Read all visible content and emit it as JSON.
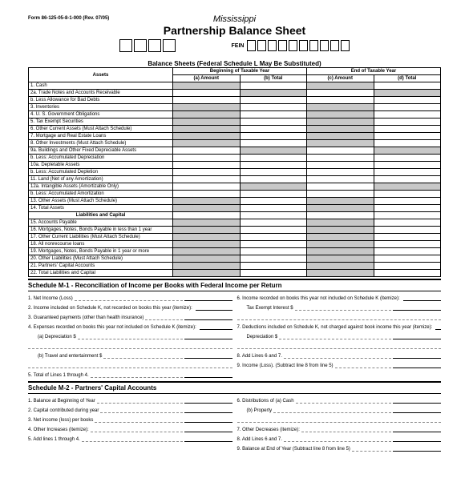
{
  "form_id": "Form 86-125-05-8-1-000 (Rev. 07/05)",
  "state": "Mississippi",
  "title": "Partnership Balance Sheet",
  "fein_label": "FEIN",
  "boxes": {
    "top_count": 4,
    "fein_count": 10
  },
  "balance": {
    "title": "Balance Sheets (Federal Schedule L May Be Substituted)",
    "group_headers": [
      "Beginning of Taxable Year",
      "End of Taxable Year"
    ],
    "col_headers": [
      "Assets",
      "(a) Amount",
      "(b) Total",
      "(c) Amount",
      "(d) Total"
    ],
    "rows": [
      {
        "n": "1.",
        "t": "Cash",
        "s": [
          1,
          0,
          1,
          0
        ]
      },
      {
        "n": "2a.",
        "t": "Trade Notes and Accounts Receivable",
        "s": [
          0,
          1,
          0,
          1
        ]
      },
      {
        "n": "b.",
        "t": "Less Allowance for Bad Debts",
        "s": [
          0,
          0,
          0,
          0
        ]
      },
      {
        "n": "3.",
        "t": "Inventories",
        "s": [
          1,
          0,
          1,
          0
        ]
      },
      {
        "n": "4.",
        "t": "U. S. Government Obligations",
        "s": [
          1,
          0,
          1,
          0
        ]
      },
      {
        "n": "5.",
        "t": "Tax Exempt Securities",
        "s": [
          1,
          0,
          1,
          0
        ]
      },
      {
        "n": "6.",
        "t": "Other Current Assets (Must Attach Schedule)",
        "s": [
          1,
          0,
          1,
          0
        ]
      },
      {
        "n": "7.",
        "t": "Mortgage and Real Estate Loans",
        "s": [
          1,
          0,
          1,
          0
        ]
      },
      {
        "n": "8.",
        "t": "Other Investments (Must Attach Schedule)",
        "s": [
          1,
          0,
          1,
          0
        ]
      },
      {
        "n": "9a.",
        "t": "Buildings and Other Fixed Depreciable Assets",
        "s": [
          0,
          1,
          0,
          1
        ]
      },
      {
        "n": "b.",
        "t": "Less: Accumulated Depreciation",
        "s": [
          0,
          0,
          0,
          0
        ]
      },
      {
        "n": "10a.",
        "t": "Depletable Assets",
        "s": [
          0,
          0,
          0,
          0
        ]
      },
      {
        "n": "b.",
        "t": "Less: Accumulated Depletion",
        "s": [
          0,
          0,
          0,
          0
        ]
      },
      {
        "n": "11.",
        "t": "Land (Net of any Amortization)",
        "s": [
          0,
          0,
          0,
          0
        ]
      },
      {
        "n": "12a.",
        "t": "Intangible Assets (Amortizable Only)",
        "s": [
          0,
          1,
          0,
          1
        ]
      },
      {
        "n": "b.",
        "t": "Less: Accumulated Amortization",
        "s": [
          0,
          0,
          0,
          0
        ]
      },
      {
        "n": "13.",
        "t": "Other Assets (Must Attach Schedule)",
        "s": [
          1,
          0,
          1,
          0
        ]
      },
      {
        "n": "14.",
        "t": "Total Assets",
        "s": [
          1,
          0,
          1,
          0
        ]
      }
    ],
    "liab_header": "Liabilities and Capital",
    "liab_rows": [
      {
        "n": "15.",
        "t": "Accounts Payable",
        "s": [
          1,
          0,
          1,
          0
        ]
      },
      {
        "n": "16.",
        "t": "Mortgages, Notes, Bonds Payable in less than 1 year",
        "s": [
          1,
          0,
          1,
          0
        ]
      },
      {
        "n": "17.",
        "t": "Other Current Liabilities (Must Attach Schedule)",
        "s": [
          1,
          0,
          1,
          0
        ]
      },
      {
        "n": "18.",
        "t": "All nonrecourse loans",
        "s": [
          1,
          0,
          1,
          0
        ]
      },
      {
        "n": "19.",
        "t": "Mortgages, Notes, Bonds Payable in 1 year or more",
        "s": [
          1,
          0,
          1,
          0
        ]
      },
      {
        "n": "20.",
        "t": "Other Liabilities (Must Attach Schedule)",
        "s": [
          1,
          0,
          1,
          0
        ]
      },
      {
        "n": "21.",
        "t": "Partners' Capital Accounts",
        "s": [
          1,
          0,
          1,
          0
        ]
      },
      {
        "n": "22.",
        "t": "Total Liabilities and Capital",
        "s": [
          1,
          0,
          1,
          0
        ]
      }
    ],
    "col_widths": {
      "label": "180px",
      "amount": "75px"
    },
    "colors": {
      "shade": "#c8c8c8",
      "border": "#000000",
      "bg": "#ffffff"
    }
  },
  "m1": {
    "title": "Schedule M-1 - Reconciliation of Income per Books with Federal Income per Return",
    "left": [
      {
        "n": "1.",
        "t": "Net Income (Loss)"
      },
      {
        "n": "2.",
        "t": "Income included on Schedule K, not recorded on books this year (itemize):"
      },
      {
        "n": "3.",
        "t": "Guaranteed payments (other than health insurance)"
      },
      {
        "n": "4.",
        "t": "Expenses recorded on books this year not included on Schedule K (itemize):"
      },
      {
        "n": "",
        "t": "(a) Depreciation $",
        "ind": true
      },
      {
        "n": "",
        "t": "(b) Travel and entertainment $",
        "ind": true
      },
      {
        "n": "5.",
        "t": "Total of Lines 1 through 4."
      }
    ],
    "right": [
      {
        "n": "6.",
        "t": "Income recorded on books this year not included on Schedule K (itemize):"
      },
      {
        "n": "",
        "t": "Tax Exempt Interest $",
        "ind": true
      },
      {
        "n": "7.",
        "t": "Deductions included on Schedule K, not charged against book income this year (itemize):"
      },
      {
        "n": "",
        "t": "Depreciation $",
        "ind": true
      },
      {
        "n": "8.",
        "t": "Add Lines 6 and 7."
      },
      {
        "n": "9.",
        "t": "Income (Loss). (Subtract line 8 from line 5)"
      }
    ]
  },
  "m2": {
    "title": "Schedule M-2 - Partners' Capital Accounts",
    "left": [
      {
        "n": "1.",
        "t": "Balance at Beginning of Year"
      },
      {
        "n": "2.",
        "t": "Capital contributed during year"
      },
      {
        "n": "3.",
        "t": "Net income (loss) per books"
      },
      {
        "n": "4.",
        "t": "Other Increases (itemize):"
      },
      {
        "n": "5.",
        "t": "Add lines 1 through 4."
      }
    ],
    "right": [
      {
        "n": "6.",
        "t": "Distributions of (a) Cash"
      },
      {
        "n": "",
        "t": "(b) Property",
        "ind": true
      },
      {
        "n": "7.",
        "t": "Other Decreases (itemize):"
      },
      {
        "n": "8.",
        "t": "Add Lines 6 and 7."
      },
      {
        "n": "9.",
        "t": "Balance at End of Year (Subtract line 8 from line 5)"
      }
    ]
  },
  "style": {
    "font_base": 7,
    "font_table": 6,
    "font_title": 14,
    "font_state": 11
  }
}
